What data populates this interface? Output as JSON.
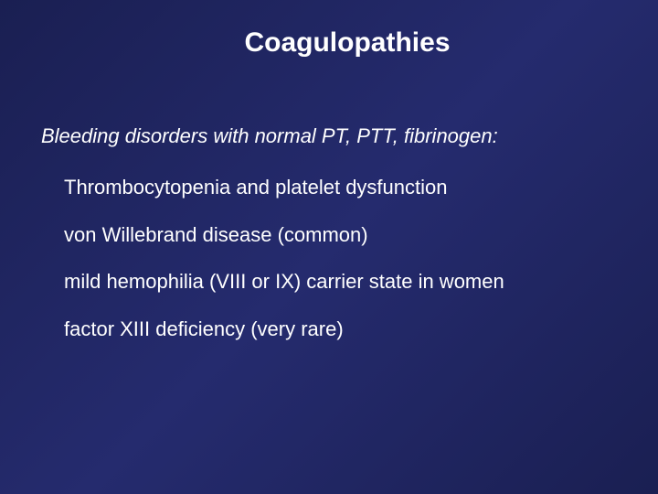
{
  "slide": {
    "background_gradient": [
      "#1a1f52",
      "#252b6e",
      "#1a1f52"
    ],
    "title": "Coagulopathies",
    "title_color": "#ffffff",
    "title_fontsize": 30,
    "title_fontweight": "bold",
    "subheading": "Bleeding disorders with normal PT, PTT, fibrinogen:",
    "subheading_color": "#ffffff",
    "subheading_fontsize": 22,
    "subheading_fontstyle": "italic",
    "bullets": [
      "Thrombocytopenia and platelet dysfunction",
      "von Willebrand disease (common)",
      "mild hemophilia (VIII or IX) carrier state in women",
      "factor XIII deficiency (very rare)"
    ],
    "bullet_color": "#ffffff",
    "bullet_fontsize": 22
  }
}
